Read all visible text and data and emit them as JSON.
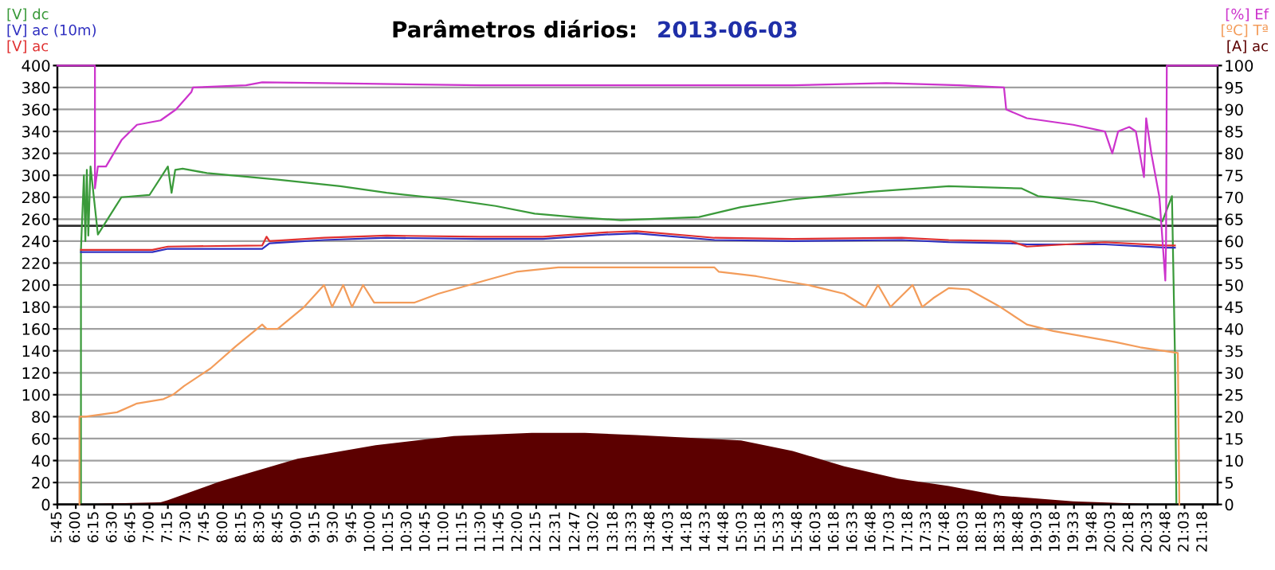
{
  "chart_data": {
    "type": "line",
    "title": "Parâmetros diários:",
    "subtitle": "2013-06-03",
    "xlim": [
      5.75,
      21.5
    ],
    "xticks": [
      {
        "value": 5.75,
        "label": "5:45"
      },
      {
        "value": 6,
        "label": "6:00"
      },
      {
        "value": 6.25,
        "label": "6:15"
      },
      {
        "value": 6.5,
        "label": "6:30"
      },
      {
        "value": 6.75,
        "label": "6:45"
      },
      {
        "value": 7,
        "label": "7:00"
      },
      {
        "value": 7.25,
        "label": "7:15"
      },
      {
        "value": 7.5,
        "label": "7:30"
      },
      {
        "value": 7.75,
        "label": "7:45"
      },
      {
        "value": 8,
        "label": "8:00"
      },
      {
        "value": 8.25,
        "label": "8:15"
      },
      {
        "value": 8.5,
        "label": "8:30"
      },
      {
        "value": 8.75,
        "label": "8:45"
      },
      {
        "value": 9,
        "label": "9:00"
      },
      {
        "value": 9.25,
        "label": "9:15"
      },
      {
        "value": 9.5,
        "label": "9:30"
      },
      {
        "value": 9.75,
        "label": "9:45"
      },
      {
        "value": 10,
        "label": "10:00"
      },
      {
        "value": 10.25,
        "label": "10:15"
      },
      {
        "value": 10.5,
        "label": "10:30"
      },
      {
        "value": 10.75,
        "label": "10:45"
      },
      {
        "value": 11,
        "label": "11:00"
      },
      {
        "value": 11.25,
        "label": "11:15"
      },
      {
        "value": 11.5,
        "label": "11:30"
      },
      {
        "value": 11.75,
        "label": "11:45"
      },
      {
        "value": 12,
        "label": "12:00"
      },
      {
        "value": 12.25,
        "label": "12:15"
      },
      {
        "value": 12.517,
        "label": "12:31"
      },
      {
        "value": 12.783,
        "label": "12:47"
      },
      {
        "value": 13.033,
        "label": "13:02"
      },
      {
        "value": 13.3,
        "label": "13:18"
      },
      {
        "value": 13.55,
        "label": "13:33"
      },
      {
        "value": 13.8,
        "label": "13:48"
      },
      {
        "value": 14.05,
        "label": "14:03"
      },
      {
        "value": 14.3,
        "label": "14:18"
      },
      {
        "value": 14.55,
        "label": "14:33"
      },
      {
        "value": 14.8,
        "label": "14:48"
      },
      {
        "value": 15.05,
        "label": "15:03"
      },
      {
        "value": 15.3,
        "label": "15:18"
      },
      {
        "value": 15.55,
        "label": "15:33"
      },
      {
        "value": 15.8,
        "label": "15:48"
      },
      {
        "value": 16.05,
        "label": "16:03"
      },
      {
        "value": 16.3,
        "label": "16:18"
      },
      {
        "value": 16.55,
        "label": "16:33"
      },
      {
        "value": 16.8,
        "label": "16:48"
      },
      {
        "value": 17.05,
        "label": "17:03"
      },
      {
        "value": 17.3,
        "label": "17:18"
      },
      {
        "value": 17.55,
        "label": "17:33"
      },
      {
        "value": 17.8,
        "label": "17:48"
      },
      {
        "value": 18.05,
        "label": "18:03"
      },
      {
        "value": 18.3,
        "label": "18:18"
      },
      {
        "value": 18.55,
        "label": "18:33"
      },
      {
        "value": 18.8,
        "label": "18:48"
      },
      {
        "value": 19.05,
        "label": "19:03"
      },
      {
        "value": 19.3,
        "label": "19:18"
      },
      {
        "value": 19.55,
        "label": "19:33"
      },
      {
        "value": 19.8,
        "label": "19:48"
      },
      {
        "value": 20.05,
        "label": "20:03"
      },
      {
        "value": 20.3,
        "label": "20:18"
      },
      {
        "value": 20.55,
        "label": "20:33"
      },
      {
        "value": 20.8,
        "label": "20:48"
      },
      {
        "value": 21.05,
        "label": "21:03"
      },
      {
        "value": 21.3,
        "label": "21:18"
      }
    ],
    "ylim": [
      0,
      400
    ],
    "yticks": [
      0,
      20,
      40,
      60,
      80,
      100,
      120,
      140,
      160,
      180,
      200,
      220,
      240,
      260,
      280,
      300,
      320,
      340,
      360,
      380,
      400
    ],
    "y2lim": [
      0,
      100
    ],
    "y2ticks": [
      0,
      5,
      10,
      15,
      20,
      25,
      30,
      35,
      40,
      45,
      50,
      55,
      60,
      65,
      70,
      75,
      80,
      85,
      90,
      95,
      100
    ],
    "grid": "y",
    "legend": false,
    "ref_lines": [
      {
        "axis": "y",
        "value": 254,
        "color": "#303030"
      }
    ],
    "series": [
      {
        "name": "[A] ac",
        "type": "area",
        "axis": "y2",
        "color": "#5c0000",
        "x": [
          6.0,
          6.41,
          7.15,
          7.25,
          7.95,
          9.01,
          10.07,
          11.13,
          12.19,
          12.91,
          13.61,
          15.03,
          15.73,
          16.43,
          17.16,
          17.85,
          18.55,
          19.54,
          20.54,
          21.0
        ],
        "values": [
          0,
          0.2,
          0.5,
          1,
          5.2,
          10.4,
          13.5,
          15.6,
          16.3,
          16.3,
          15.8,
          14.6,
          12.2,
          8.7,
          5.9,
          4.2,
          2,
          0.7,
          0.1,
          0
        ]
      },
      {
        "name": "[ºC] Tª",
        "axis": "y2",
        "color": "#f39c5a",
        "x": [
          6.05,
          6.05,
          6.13,
          6.56,
          6.83,
          7.19,
          7.32,
          7.47,
          7.83,
          8.17,
          8.46,
          8.53,
          8.59,
          8.74,
          9.1,
          9.37,
          9.48,
          9.63,
          9.75,
          9.9,
          10.05,
          10.6,
          10.92,
          11.34,
          11.55,
          11.98,
          12.55,
          14.67,
          14.73,
          15.24,
          15.58,
          15.94,
          16.43,
          16.72,
          16.89,
          17.06,
          17.36,
          17.49,
          17.64,
          17.85,
          18.12,
          18.55,
          18.91,
          19.27,
          19.61,
          20.11,
          20.45,
          20.96,
          20.98
        ],
        "values": [
          0,
          20,
          20,
          21,
          23,
          24,
          25,
          27,
          31,
          36,
          40,
          41,
          40,
          40,
          45,
          50,
          45,
          50,
          45,
          50,
          46,
          46,
          48,
          50,
          51,
          53,
          54,
          54,
          53,
          52,
          51,
          50,
          48,
          45,
          50,
          45,
          50,
          45,
          47,
          49.3,
          49,
          45,
          41,
          39.5,
          38.5,
          37,
          35.8,
          34.5,
          0
        ]
      },
      {
        "name": "[V] dc",
        "color": "#3a9a3a",
        "x": [
          6.07,
          6.07,
          6.11,
          6.13,
          6.15,
          6.17,
          6.2,
          6.3,
          6.45,
          6.62,
          7.0,
          7.25,
          7.3,
          7.35,
          7.45,
          7.78,
          8.1,
          8.74,
          9.59,
          10.22,
          11.07,
          11.7,
          12.23,
          12.76,
          13.4,
          14.46,
          15.03,
          15.73,
          16.79,
          17.85,
          18.84,
          19.06,
          19.82,
          20.24,
          20.6,
          20.75,
          20.88,
          20.92,
          20.94
        ],
        "values": [
          0,
          232,
          300,
          240,
          305,
          245,
          308,
          246,
          262,
          280,
          282,
          308,
          284,
          305,
          306,
          302,
          300,
          296,
          290,
          284,
          278,
          272,
          265,
          262,
          259,
          262,
          271,
          278,
          285,
          290,
          288,
          281,
          276,
          269,
          262,
          258,
          281,
          139,
          0
        ]
      },
      {
        "name": "[V] ac (10m)",
        "color": "#3030c0",
        "x": [
          6.07,
          7.04,
          7.25,
          8.53,
          8.59,
          8.63,
          9.37,
          10.22,
          11.49,
          12.34,
          12.76,
          13.19,
          13.61,
          14.67,
          15.73,
          17.21,
          17.85,
          18.69,
          18.91,
          19.97,
          20.81,
          20.92
        ],
        "values": [
          230,
          230,
          233,
          233,
          236,
          238,
          241,
          243,
          242,
          242,
          244,
          246,
          247,
          241,
          240,
          241,
          239,
          238,
          237,
          237,
          234,
          234
        ]
      },
      {
        "name": "[V] ac",
        "color": "#e03030",
        "x": [
          6.07,
          7.04,
          7.25,
          8.53,
          8.59,
          8.63,
          9.37,
          10.22,
          11.49,
          12.34,
          12.76,
          13.19,
          13.61,
          14.67,
          15.73,
          17.21,
          17.85,
          18.69,
          18.91,
          19.97,
          20.81,
          20.92
        ],
        "values": [
          232,
          232,
          235,
          236,
          244,
          240,
          243,
          245,
          244,
          244,
          246,
          248,
          249,
          243,
          242,
          243,
          241,
          240,
          235,
          239,
          236,
          236
        ]
      },
      {
        "name": "[%] Ef",
        "axis": "y2",
        "color": "#cc33cc",
        "x": [
          5.75,
          6.26,
          6.26,
          6.3,
          6.41,
          6.62,
          6.83,
          7.15,
          7.36,
          7.57,
          7.59,
          8.31,
          8.53,
          9.37,
          11.49,
          13.63,
          15.73,
          17.0,
          18.0,
          18.6,
          18.63,
          18.91,
          19.54,
          19.97,
          20.07,
          20.15,
          20.3,
          20.39,
          20.5,
          20.53,
          20.6,
          20.71,
          20.79,
          20.8,
          20.81,
          21.5
        ],
        "values": [
          100,
          100,
          72,
          77,
          77,
          83,
          86.5,
          87.5,
          90,
          94,
          95,
          95.5,
          96.2,
          96,
          95.5,
          95.5,
          95.5,
          96,
          95.5,
          95,
          90,
          88,
          86.5,
          85,
          80,
          85,
          86,
          85,
          74.6,
          88,
          80,
          70,
          51,
          60,
          100,
          100
        ]
      }
    ]
  }
}
